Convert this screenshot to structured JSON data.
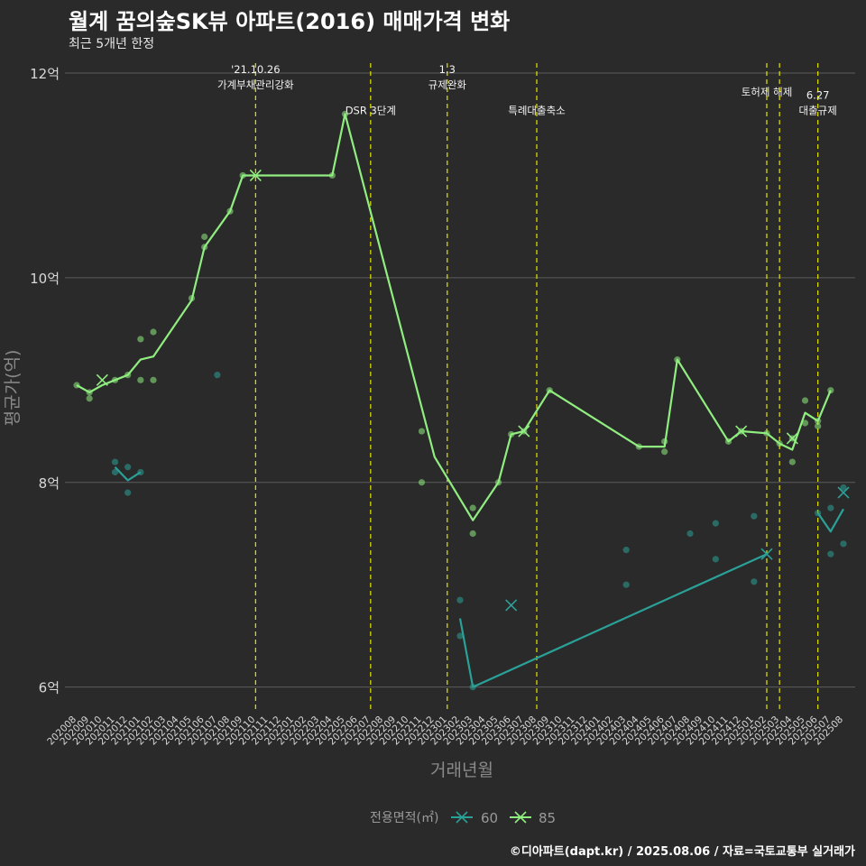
{
  "chart_data": {
    "type": "line",
    "title": "월계 꿈의숲SK뷰 아파트(2016) 매매가격 변화",
    "subtitle": "최근 5개년 한정",
    "xlabel": "거래년월",
    "ylabel": "평균가(억)",
    "caption": "©디아파트(dapt.kr) / 2025.08.06 / 자료=국토교통부 실거래가",
    "legend_title": "전용면적(㎡)",
    "ylim": [
      5.75,
      12.15
    ],
    "y_ticks": [
      6,
      8,
      10,
      12
    ],
    "y_tick_labels": [
      "6억",
      "8억",
      "10억",
      "12억"
    ],
    "x_ticks": [
      "202008",
      "202009",
      "202010",
      "202011",
      "202012",
      "202101",
      "202102",
      "202103",
      "202104",
      "202105",
      "202106",
      "202107",
      "202108",
      "202109",
      "202110",
      "202111",
      "202112",
      "202201",
      "202202",
      "202203",
      "202204",
      "202205",
      "202206",
      "202207",
      "202208",
      "202209",
      "202210",
      "202211",
      "202212",
      "202301",
      "202302",
      "202303",
      "202304",
      "202305",
      "202306",
      "202307",
      "202308",
      "202309",
      "202310",
      "202311",
      "202312",
      "202401",
      "202402",
      "202403",
      "202404",
      "202405",
      "202406",
      "202407",
      "202408",
      "202409",
      "202410",
      "202411",
      "202412",
      "202501",
      "202502",
      "202503",
      "202504",
      "202505",
      "202506",
      "202507",
      "202508"
    ],
    "colors": {
      "60": "#2aa198",
      "85": "#90ee80",
      "annotation": "#e5e500",
      "grid": "#5c5c5c",
      "axis_text": "#d8d8d8"
    },
    "series": [
      {
        "name": "60",
        "line": [
          [
            3,
            8.15
          ],
          [
            4,
            8.02
          ],
          [
            5,
            8.1
          ],
          [
            30,
            6.67
          ],
          [
            31,
            6.0
          ],
          [
            54,
            7.3
          ],
          [
            58,
            7.7
          ],
          [
            59,
            7.52
          ],
          [
            60,
            7.74
          ]
        ],
        "line_breaks": [
          3,
          6
        ],
        "markers_x": [
          [
            34,
            6.8
          ],
          [
            54,
            7.3
          ],
          [
            60,
            7.9
          ]
        ],
        "points": [
          [
            3,
            8.2
          ],
          [
            3,
            8.1
          ],
          [
            4,
            8.15
          ],
          [
            4,
            7.9
          ],
          [
            5,
            8.1
          ],
          [
            11,
            9.05
          ],
          [
            30,
            6.85
          ],
          [
            30,
            6.5
          ],
          [
            31,
            6.0
          ],
          [
            43,
            7.34
          ],
          [
            43,
            7.0
          ],
          [
            48,
            7.5
          ],
          [
            50,
            7.6
          ],
          [
            50,
            7.25
          ],
          [
            53,
            7.67
          ],
          [
            53,
            7.03
          ],
          [
            58,
            7.7
          ],
          [
            59,
            7.75
          ],
          [
            59,
            7.3
          ],
          [
            60,
            7.4
          ],
          [
            60,
            7.95
          ]
        ]
      },
      {
        "name": "85",
        "line": [
          [
            0,
            8.95
          ],
          [
            1,
            8.88
          ],
          [
            2,
            8.95
          ],
          [
            3,
            9.0
          ],
          [
            4,
            9.05
          ],
          [
            5,
            9.2
          ],
          [
            6,
            9.23
          ],
          [
            9,
            9.78
          ],
          [
            10,
            10.3
          ],
          [
            12,
            10.65
          ],
          [
            13,
            11.0
          ],
          [
            20,
            11.0
          ],
          [
            21,
            11.6
          ],
          [
            28,
            8.25
          ],
          [
            31,
            7.63
          ],
          [
            33,
            8.0
          ],
          [
            34,
            8.47
          ],
          [
            35,
            8.5
          ],
          [
            37,
            8.9
          ],
          [
            44,
            8.35
          ],
          [
            46,
            8.35
          ],
          [
            47,
            9.2
          ],
          [
            51,
            8.4
          ],
          [
            52,
            8.5
          ],
          [
            54,
            8.48
          ],
          [
            55,
            8.38
          ],
          [
            56,
            8.32
          ],
          [
            57,
            8.68
          ],
          [
            58,
            8.6
          ],
          [
            59,
            8.9
          ]
        ],
        "markers_x": [
          [
            2,
            9.0
          ],
          [
            14,
            11.0
          ],
          [
            35,
            8.5
          ],
          [
            52,
            8.5
          ],
          [
            56,
            8.43
          ]
        ],
        "points": [
          [
            0,
            8.95
          ],
          [
            1,
            8.82
          ],
          [
            1,
            8.88
          ],
          [
            3,
            9.0
          ],
          [
            4,
            9.05
          ],
          [
            5,
            9.4
          ],
          [
            5,
            9.0
          ],
          [
            6,
            9.47
          ],
          [
            6,
            9.0
          ],
          [
            9,
            9.8
          ],
          [
            10,
            10.3
          ],
          [
            10,
            10.4
          ],
          [
            12,
            10.65
          ],
          [
            13,
            11.0
          ],
          [
            20,
            11.0
          ],
          [
            21,
            11.6
          ],
          [
            27,
            8.5
          ],
          [
            27,
            8.0
          ],
          [
            31,
            7.75
          ],
          [
            31,
            7.5
          ],
          [
            33,
            8.0
          ],
          [
            34,
            8.47
          ],
          [
            35,
            8.5
          ],
          [
            37,
            8.9
          ],
          [
            44,
            8.35
          ],
          [
            46,
            8.3
          ],
          [
            46,
            8.4
          ],
          [
            47,
            9.2
          ],
          [
            51,
            8.4
          ],
          [
            52,
            8.5
          ],
          [
            54,
            8.48
          ],
          [
            55,
            8.38
          ],
          [
            56,
            8.43
          ],
          [
            56,
            8.2
          ],
          [
            57,
            8.8
          ],
          [
            57,
            8.58
          ],
          [
            58,
            8.6
          ],
          [
            58,
            8.55
          ],
          [
            59,
            8.9
          ]
        ]
      }
    ],
    "annotations": [
      {
        "x": 14,
        "label": "'21.10.26\n가계부채관리강화",
        "y": 11.85
      },
      {
        "x": 23,
        "label": "DSR 3단계",
        "y": 11.6
      },
      {
        "x": 29,
        "label": "1.3\n규제완화",
        "y": 11.85
      },
      {
        "x": 36,
        "label": "특례대출축소",
        "y": 11.6
      },
      {
        "x": 54,
        "label": "토허제 해제",
        "y": 11.78
      },
      {
        "x": 55,
        "label": "",
        "y": 11.78
      },
      {
        "x": 58,
        "label": "6.27\n대출규제",
        "y": 11.6
      }
    ]
  }
}
